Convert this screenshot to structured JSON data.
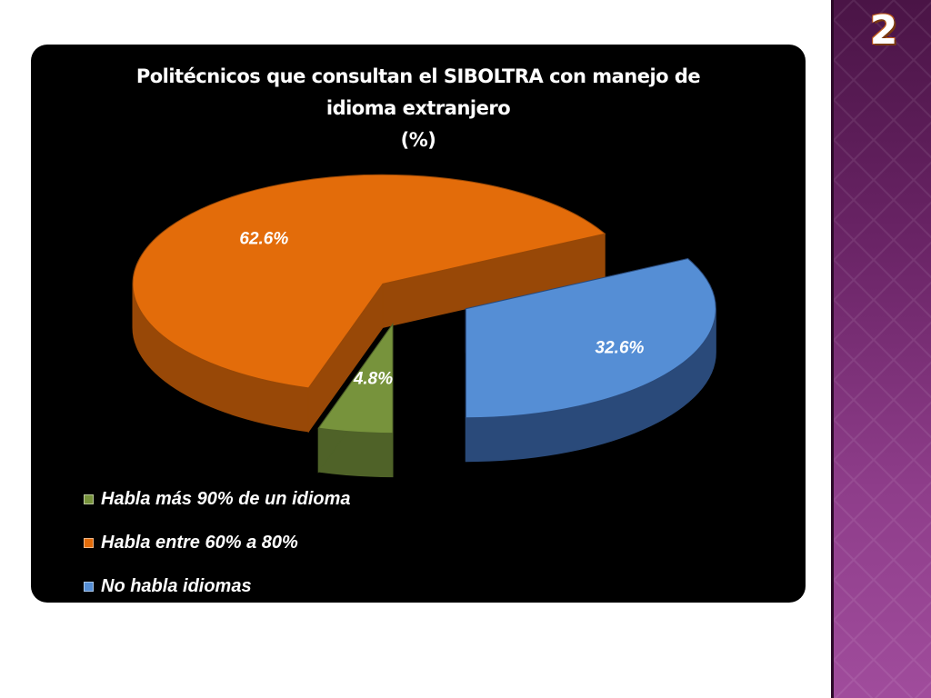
{
  "slide": {
    "number": "2"
  },
  "colors": {
    "strip": "#7a3076",
    "orange": "#e36c0a",
    "blue": "#558ed5",
    "green": "#77933c"
  },
  "chart_data": {
    "type": "pie",
    "title_lines": [
      "Politécnicos que consultan el SIBOLTRA con manejo de",
      "idioma extranjero",
      "(%)"
    ],
    "slices": [
      {
        "name": "Habla más 90% de un idioma",
        "value": 4.8,
        "label": "4.8%",
        "color": "#77933c",
        "dark": "#4f6228"
      },
      {
        "name": "Habla entre 60% a 80%",
        "value": 62.6,
        "label": "62.6%",
        "color": "#e36c0a",
        "dark": "#984807"
      },
      {
        "name": "No habla idiomas",
        "value": 32.6,
        "label": "32.6%",
        "color": "#558ed5",
        "dark": "#2a4a7a"
      }
    ],
    "legend": [
      {
        "label": "Habla más 90% de un idioma",
        "color": "#77933c"
      },
      {
        "label": "Habla entre 60% a 80%",
        "color": "#e36c0a"
      },
      {
        "label": "No habla idiomas",
        "color": "#558ed5"
      }
    ],
    "legend_position": "bottom-left",
    "style": "3d-exploded"
  }
}
